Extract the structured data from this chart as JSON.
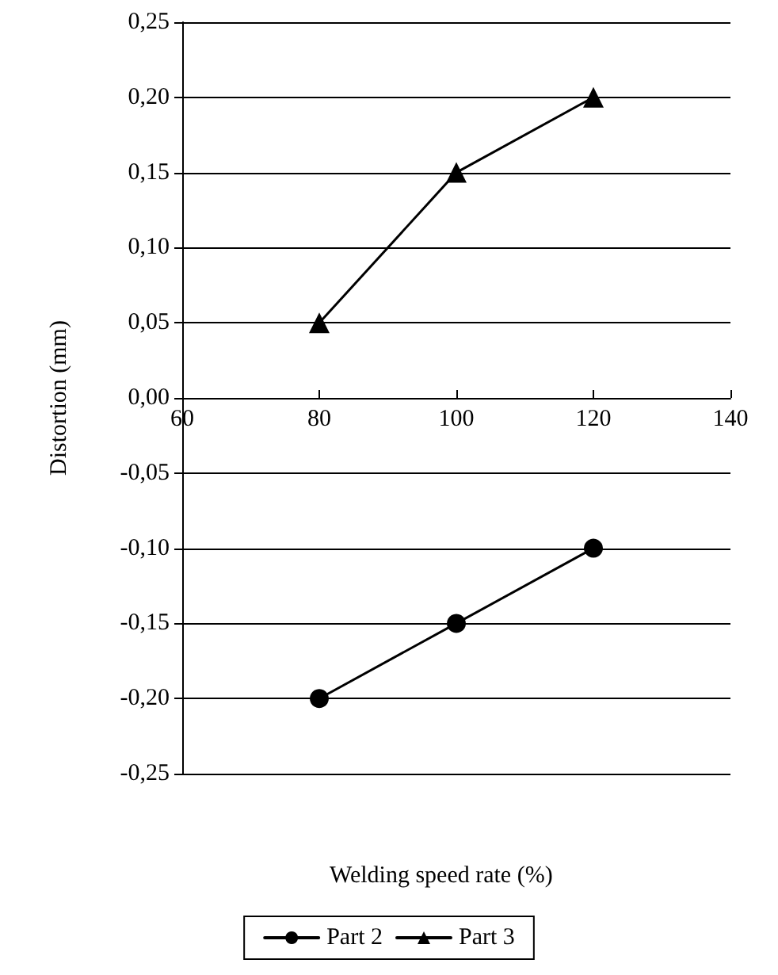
{
  "chart_data": {
    "type": "line",
    "xlabel": "Welding speed rate (%)",
    "ylabel": "Distortion (mm)",
    "x": [
      80,
      100,
      120
    ],
    "series": [
      {
        "name": "Part 2",
        "color": "#000000",
        "marker": "circle",
        "values": [
          -0.2,
          -0.15,
          -0.1
        ]
      },
      {
        "name": "Part 3",
        "color": "#000000",
        "marker": "triangle",
        "values": [
          0.05,
          0.15,
          0.2
        ]
      }
    ],
    "xlim": [
      60,
      140
    ],
    "xticks": [
      60,
      80,
      100,
      120,
      140
    ],
    "ylim": [
      -0.25,
      0.25
    ],
    "yticks": [
      {
        "value": -0.25,
        "label": "-0,25"
      },
      {
        "value": -0.2,
        "label": "-0,20"
      },
      {
        "value": -0.15,
        "label": "-0,15"
      },
      {
        "value": -0.1,
        "label": "-0,10"
      },
      {
        "value": -0.05,
        "label": "-0,05"
      },
      {
        "value": 0,
        "label": "0,00"
      },
      {
        "value": 0.05,
        "label": "0,05"
      },
      {
        "value": 0.1,
        "label": "0,10"
      },
      {
        "value": 0.15,
        "label": "0,15"
      },
      {
        "value": 0.2,
        "label": "0,20"
      },
      {
        "value": 0.25,
        "label": "0,25"
      }
    ],
    "grid": "y",
    "legend": "bottom",
    "line_style": "solid"
  }
}
